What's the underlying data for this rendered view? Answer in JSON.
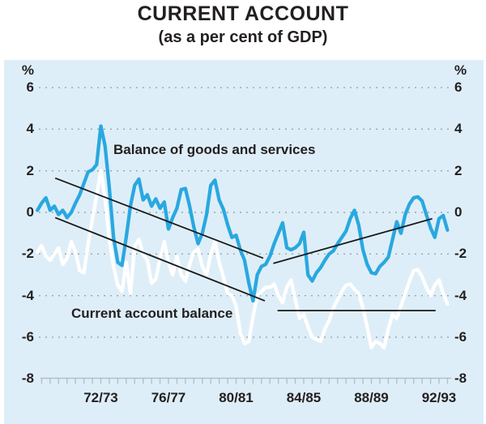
{
  "page": {
    "title": "CURRENT ACCOUNT",
    "subtitle": "(as a per cent of GDP)"
  },
  "colors": {
    "panel": "#deeef8",
    "grid": "#99a3ab",
    "axis": "#b4bfc7",
    "text": "#231f20",
    "trend": "#1a1a1a",
    "goods_line": "#29a8e0",
    "cab_line": "#ffffff"
  },
  "chart_data": {
    "type": "line",
    "title": "CURRENT ACCOUNT",
    "subtitle": "(as a per cent of GDP)",
    "unit": "%",
    "ylabel": "%",
    "ylim": [
      -8,
      6
    ],
    "y_ticks": [
      6,
      4,
      2,
      0,
      -2,
      -4,
      -6,
      -8
    ],
    "y_gridlines": [
      6,
      4,
      2,
      0,
      -2,
      -4,
      -6
    ],
    "grid": "dotted",
    "legend_position": "inline-annotations",
    "x_tick_labels": [
      "72/73",
      "76/77",
      "80/81",
      "84/85",
      "88/89",
      "92/93"
    ],
    "x_tick_years": [
      1972.5,
      1976.5,
      1980.5,
      1984.5,
      1988.5,
      1992.5
    ],
    "x_range_years": [
      1968.75,
      1993.0
    ],
    "x_step_years": 0.25,
    "x_minor_tick_step": 0.5,
    "series": [
      {
        "name": "Balance of goods and services",
        "color": "#29a8e0",
        "values": [
          0.1,
          0.45,
          0.7,
          0.1,
          0.3,
          -0.1,
          0.1,
          -0.25,
          0.0,
          0.45,
          0.85,
          1.4,
          1.95,
          2.05,
          2.3,
          4.15,
          3.2,
          1.2,
          -1.2,
          -2.4,
          -2.55,
          -1.2,
          0.3,
          1.3,
          1.6,
          0.6,
          0.85,
          0.3,
          0.65,
          0.2,
          0.5,
          -0.8,
          -0.25,
          0.2,
          1.1,
          1.15,
          0.3,
          -0.7,
          -1.5,
          -1.0,
          -0.1,
          1.3,
          1.55,
          0.6,
          0.15,
          -0.6,
          -1.2,
          -1.1,
          -1.8,
          -2.3,
          -3.4,
          -4.25,
          -3.0,
          -2.6,
          -2.5,
          -2.1,
          -1.5,
          -1.0,
          -0.5,
          -1.7,
          -1.8,
          -1.7,
          -1.5,
          -0.95,
          -3.0,
          -3.3,
          -2.9,
          -2.65,
          -2.3,
          -2.0,
          -1.85,
          -1.5,
          -1.2,
          -0.9,
          -0.3,
          0.1,
          -0.6,
          -1.8,
          -2.5,
          -2.9,
          -2.95,
          -2.6,
          -2.4,
          -2.15,
          -1.3,
          -0.45,
          -1.0,
          -0.1,
          0.4,
          0.7,
          0.75,
          0.55,
          -0.1,
          -0.75,
          -1.2,
          -0.3,
          -0.15,
          -0.85
        ]
      },
      {
        "name": "Current account balance",
        "color": "#ffffff",
        "values": [
          -1.9,
          -1.6,
          -2.1,
          -2.3,
          -2.0,
          -1.7,
          -2.5,
          -2.2,
          -1.4,
          -1.9,
          -2.8,
          -2.9,
          -1.5,
          -0.3,
          0.8,
          2.0,
          0.7,
          -1.3,
          -2.6,
          -3.5,
          -3.8,
          -2.4,
          -3.9,
          -1.6,
          -1.3,
          -2.0,
          -2.3,
          -3.4,
          -3.2,
          -2.2,
          -1.4,
          -2.4,
          -3.0,
          -2.1,
          -3.0,
          -3.3,
          -2.5,
          -1.9,
          -1.75,
          -2.6,
          -3.0,
          -2.0,
          -1.4,
          -2.4,
          -3.1,
          -3.9,
          -4.0,
          -4.5,
          -5.8,
          -6.3,
          -6.2,
          -5.0,
          -4.0,
          -3.8,
          -3.6,
          -3.6,
          -3.45,
          -4.0,
          -4.35,
          -3.6,
          -3.25,
          -4.2,
          -5.1,
          -4.9,
          -5.5,
          -6.0,
          -6.1,
          -6.2,
          -5.6,
          -5.2,
          -4.6,
          -4.2,
          -3.8,
          -3.5,
          -3.45,
          -3.7,
          -3.9,
          -4.6,
          -5.5,
          -6.5,
          -6.2,
          -6.3,
          -6.5,
          -5.6,
          -4.9,
          -5.1,
          -4.5,
          -3.9,
          -3.3,
          -2.8,
          -2.75,
          -3.1,
          -3.6,
          -4.0,
          -3.5,
          -3.25,
          -3.9,
          -4.4
        ]
      }
    ],
    "trend_lines": [
      {
        "name": "goods-trend-down",
        "from": [
          1969.8,
          1.65
        ],
        "to": [
          1982.1,
          -2.2
        ]
      },
      {
        "name": "cab-trend-down",
        "from": [
          1969.8,
          -0.25
        ],
        "to": [
          1982.2,
          -4.25
        ]
      },
      {
        "name": "goods-trend-up",
        "from": [
          1982.7,
          -2.45
        ],
        "to": [
          1992.1,
          -0.3
        ]
      },
      {
        "name": "cab-trend-flat",
        "from": [
          1982.95,
          -4.72
        ],
        "to": [
          1992.3,
          -4.72
        ]
      }
    ],
    "annotations": [
      {
        "text": "Balance of goods and services"
      },
      {
        "text": "Current account balance"
      }
    ]
  }
}
